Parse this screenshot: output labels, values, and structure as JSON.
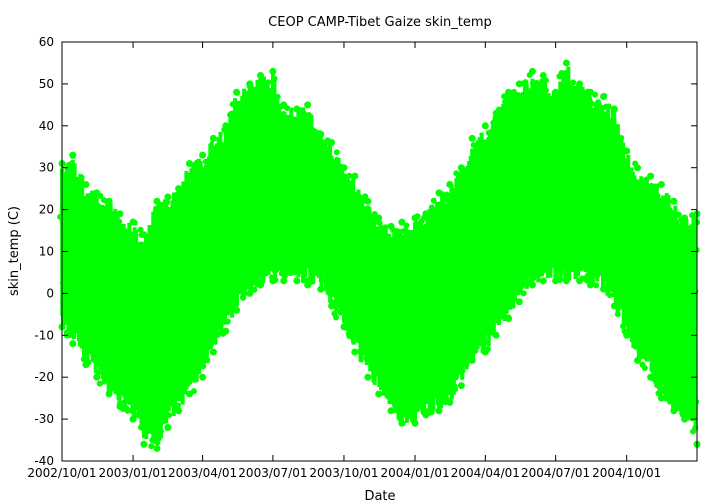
{
  "chart_data": {
    "type": "scatter",
    "title": "CEOP CAMP-Tibet Gaize  skin_temp",
    "xlabel": "Date",
    "ylabel": "skin_temp (C)",
    "xlim": [
      "2002-10-01",
      "2004-12-31"
    ],
    "ylim": [
      -40,
      60
    ],
    "y_ticks": [
      -40,
      -30,
      -20,
      -10,
      0,
      10,
      20,
      30,
      40,
      50,
      60
    ],
    "x_ticks": [
      "2002/10/01",
      "2003/01/01",
      "2003/04/01",
      "2003/07/01",
      "2003/10/01",
      "2004/01/01",
      "2004/04/01",
      "2004/07/01",
      "2004/10/01"
    ],
    "grid": false,
    "legend": "none",
    "color": "#00ff00",
    "series": [
      {
        "x": [
          "2002-10-01",
          "2002-10-15",
          "2002-11-01",
          "2002-11-15",
          "2002-12-01",
          "2002-12-15",
          "2003-01-01",
          "2003-01-15",
          "2003-02-01",
          "2003-02-15",
          "2003-03-01",
          "2003-03-15",
          "2003-04-01",
          "2003-04-15",
          "2003-05-01",
          "2003-05-15",
          "2003-06-01",
          "2003-06-15",
          "2003-07-01",
          "2003-07-15",
          "2003-08-01",
          "2003-08-15",
          "2003-09-01",
          "2003-09-15",
          "2003-10-01",
          "2003-10-15",
          "2003-11-01",
          "2003-11-15",
          "2003-12-01",
          "2003-12-15",
          "2004-01-01",
          "2004-01-15",
          "2004-02-01",
          "2004-02-15",
          "2004-03-01",
          "2004-03-15",
          "2004-04-01",
          "2004-04-15",
          "2004-05-01",
          "2004-05-15",
          "2004-06-01",
          "2004-06-15",
          "2004-07-01",
          "2004-07-15",
          "2004-08-01",
          "2004-08-15",
          "2004-09-01",
          "2004-09-15",
          "2004-10-01",
          "2004-10-15",
          "2004-11-01",
          "2004-11-15",
          "2004-12-01",
          "2004-12-15",
          "2004-12-31"
        ],
        "y_min": [
          -8,
          -12,
          -17,
          -20,
          -24,
          -27,
          -30,
          -36,
          -37,
          -32,
          -28,
          -24,
          -20,
          -14,
          -9,
          -4,
          0,
          2,
          3,
          3,
          3,
          2,
          1,
          -3,
          -8,
          -14,
          -20,
          -24,
          -28,
          -31,
          -31,
          -29,
          -28,
          -26,
          -22,
          -16,
          -14,
          -10,
          -6,
          -2,
          2,
          3,
          3,
          3,
          3,
          2,
          1,
          -3,
          -10,
          -16,
          -20,
          -25,
          -28,
          -30,
          -36
        ],
        "y_max": [
          31,
          33,
          26,
          24,
          22,
          19,
          17,
          14,
          22,
          23,
          25,
          31,
          33,
          37,
          40,
          48,
          50,
          52,
          53,
          45,
          44,
          45,
          38,
          36,
          30,
          28,
          22,
          18,
          16,
          17,
          18,
          19,
          24,
          26,
          30,
          37,
          40,
          43,
          48,
          50,
          53,
          52,
          48,
          55,
          50,
          48,
          47,
          44,
          34,
          30,
          28,
          26,
          22,
          18,
          19
        ]
      }
    ]
  }
}
